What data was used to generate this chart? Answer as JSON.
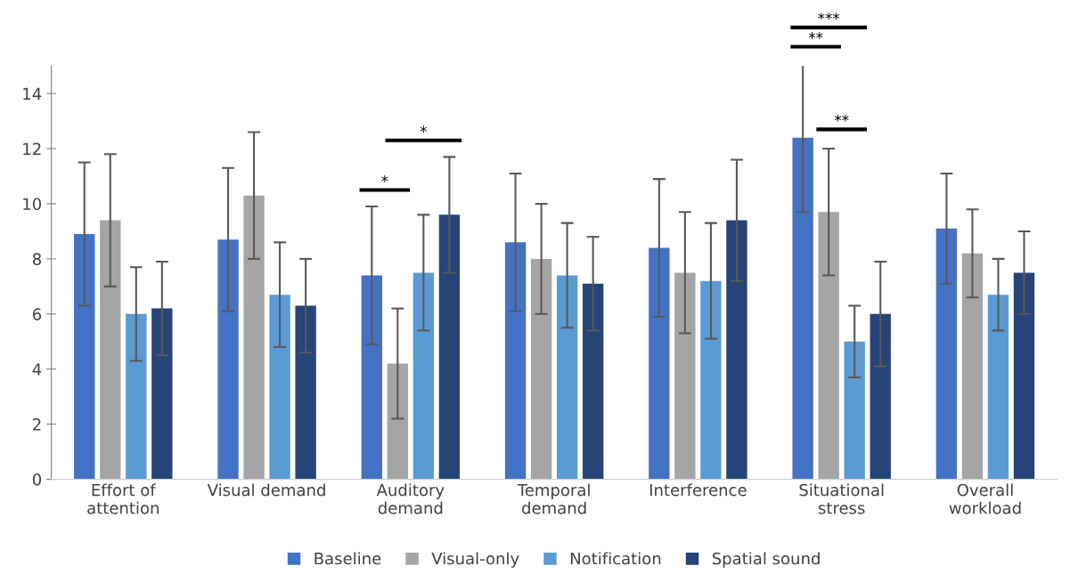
{
  "chart_data": {
    "type": "bar",
    "categories": [
      "Effort of\nattention",
      "Visual demand",
      "Auditory\ndemand",
      "Temporal\ndemand",
      "Interference",
      "Situational\nstress",
      "Overall\nworkload"
    ],
    "series": [
      {
        "name": "Baseline",
        "color": "#4472c4",
        "values": [
          8.9,
          8.7,
          7.4,
          8.6,
          8.4,
          12.4,
          9.1
        ],
        "errors": [
          2.6,
          2.6,
          2.5,
          2.5,
          2.5,
          2.7,
          2.0
        ]
      },
      {
        "name": "Visual-only",
        "color": "#a5a5a5",
        "values": [
          9.4,
          10.3,
          4.2,
          8.0,
          7.5,
          9.7,
          8.2
        ],
        "errors": [
          2.4,
          2.3,
          2.0,
          2.0,
          2.2,
          2.3,
          1.6
        ]
      },
      {
        "name": "Notification",
        "color": "#5b9bd5",
        "values": [
          6.0,
          6.7,
          7.5,
          7.4,
          7.2,
          5.0,
          6.7
        ],
        "errors": [
          1.7,
          1.9,
          2.1,
          1.9,
          2.1,
          1.3,
          1.3
        ]
      },
      {
        "name": "Spatial sound",
        "color": "#264478",
        "values": [
          6.2,
          6.3,
          9.6,
          7.1,
          9.4,
          6.0,
          7.5
        ],
        "errors": [
          1.7,
          1.7,
          2.1,
          1.7,
          2.2,
          1.9,
          1.5
        ]
      }
    ],
    "ylim": [
      0,
      15
    ],
    "yticks": [
      0,
      2,
      4,
      6,
      8,
      10,
      12,
      14
    ],
    "grid": false,
    "legend": "bottom",
    "annotations": [
      "*",
      "*",
      "***",
      "**",
      "**"
    ]
  }
}
